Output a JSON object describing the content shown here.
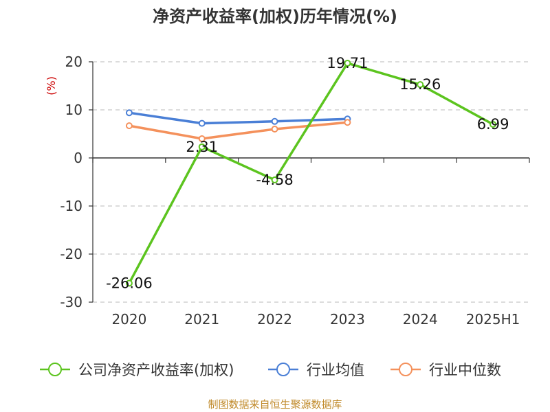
{
  "chart_data": {
    "type": "line",
    "title": "净资产收益率(加权)历年情况(%)",
    "ylabel": "(%)",
    "categories": [
      "2020",
      "2021",
      "2022",
      "2023",
      "2024",
      "2025H1"
    ],
    "ylim": [
      -30,
      20
    ],
    "yticks": [
      -30,
      -20,
      -10,
      0,
      10,
      20
    ],
    "grid": true,
    "legend_position": "bottom",
    "series": [
      {
        "name": "公司净资产收益率(加权)",
        "color": "#5cc41f",
        "values": [
          -26.06,
          2.31,
          -4.58,
          19.71,
          15.26,
          6.99
        ],
        "labels": [
          "-26.06",
          "2.31",
          "-4.58",
          "19.71",
          "15.26",
          "6.99"
        ]
      },
      {
        "name": "行业均值",
        "color": "#4a7fd6",
        "values": [
          9.4,
          7.2,
          7.6,
          8.1,
          null,
          null
        ]
      },
      {
        "name": "行业中位数",
        "color": "#f4915c",
        "values": [
          6.7,
          4.0,
          6.0,
          7.4,
          null,
          null
        ]
      }
    ],
    "source": "制图数据来自恒生聚源数据库"
  }
}
